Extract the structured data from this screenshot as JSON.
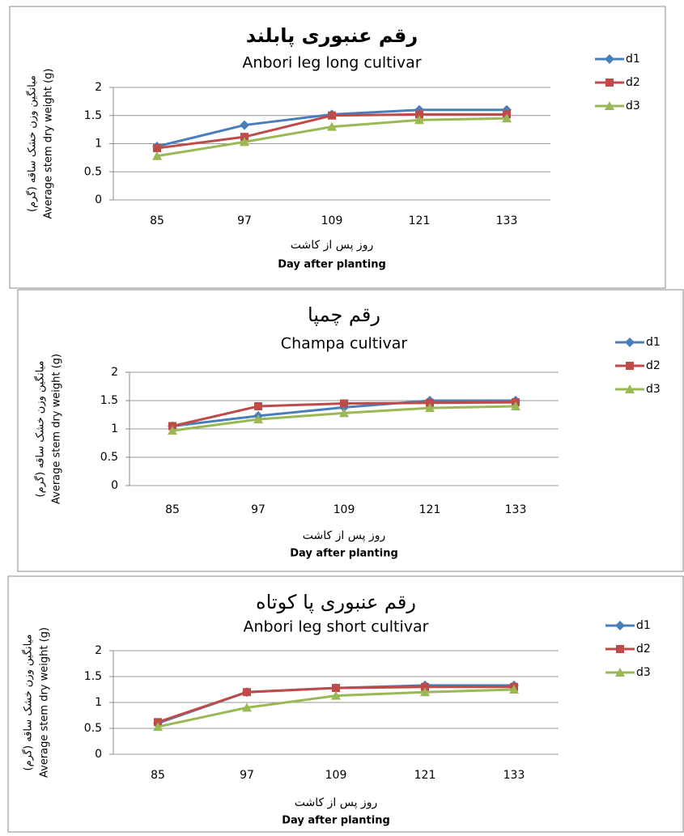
{
  "chart_data": [
    {
      "type": "line",
      "title": "رقم عنبوری پابلند",
      "subtitle": "Anbori leg long cultivar",
      "y_label": "میانگین وزن خشک ساقه (گرم)",
      "y_label_en": "Average stem dry weight (g)",
      "x_label": "روز پس از کاشت",
      "x_label_en": "Day after planting",
      "categories": [
        85,
        97,
        109,
        121,
        133
      ],
      "ylim": [
        0,
        2
      ],
      "yticks": [
        0,
        0.5,
        1,
        1.5,
        2
      ],
      "grid": true,
      "legend": "right",
      "series": [
        {
          "name": "d1",
          "color": "#4a7ebb",
          "marker": "diamond",
          "values": [
            0.95,
            1.33,
            1.52,
            1.6,
            1.6
          ]
        },
        {
          "name": "d2",
          "color": "#be4b48",
          "marker": "square",
          "values": [
            0.92,
            1.12,
            1.5,
            1.52,
            1.52
          ]
        },
        {
          "name": "d3",
          "color": "#98b954",
          "marker": "triangle",
          "values": [
            0.78,
            1.03,
            1.3,
            1.42,
            1.45
          ]
        }
      ]
    },
    {
      "type": "line",
      "title": "رقم چمپا",
      "subtitle": "Champa cultivar",
      "y_label": "میانگین وزن خشک ساقه (گرم)",
      "y_label_en": "Average stem dry weight (g)",
      "x_label": "روز پس از کاشت",
      "x_label_en": "Day after planting",
      "categories": [
        85,
        97,
        109,
        121,
        133
      ],
      "ylim": [
        0,
        2
      ],
      "yticks": [
        0,
        0.5,
        1,
        1.5,
        2
      ],
      "grid": true,
      "legend": "right",
      "series": [
        {
          "name": "d1",
          "color": "#4a7ebb",
          "marker": "diamond",
          "values": [
            1.05,
            1.23,
            1.38,
            1.5,
            1.5
          ]
        },
        {
          "name": "d2",
          "color": "#be4b48",
          "marker": "square",
          "values": [
            1.05,
            1.4,
            1.45,
            1.46,
            1.47
          ]
        },
        {
          "name": "d3",
          "color": "#98b954",
          "marker": "triangle",
          "values": [
            0.97,
            1.17,
            1.28,
            1.37,
            1.4
          ]
        }
      ]
    },
    {
      "type": "line",
      "title": "رقم عنبوری پا کوتاه",
      "subtitle": "Anbori leg short cultivar",
      "y_label": "میانگین وزن خشک ساقه (گرم)",
      "y_label_en": "Average stem dry weight (g)",
      "x_label": "روز پس از کاشت",
      "x_label_en": "Day after planting",
      "categories": [
        85,
        97,
        109,
        121,
        133
      ],
      "ylim": [
        0,
        2
      ],
      "yticks": [
        0,
        0.5,
        1,
        1.5,
        2
      ],
      "grid": true,
      "legend": "right",
      "series": [
        {
          "name": "d1",
          "color": "#4a7ebb",
          "marker": "diamond",
          "values": [
            0.6,
            1.2,
            1.28,
            1.33,
            1.33
          ]
        },
        {
          "name": "d2",
          "color": "#be4b48",
          "marker": "square",
          "values": [
            0.62,
            1.2,
            1.28,
            1.3,
            1.3
          ]
        },
        {
          "name": "d3",
          "color": "#98b954",
          "marker": "triangle",
          "values": [
            0.53,
            0.9,
            1.13,
            1.2,
            1.25
          ]
        }
      ]
    }
  ]
}
